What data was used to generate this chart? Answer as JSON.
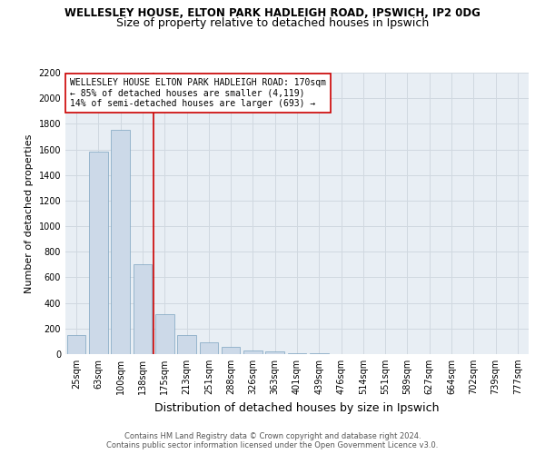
{
  "title1": "WELLESLEY HOUSE, ELTON PARK HADLEIGH ROAD, IPSWICH, IP2 0DG",
  "title2": "Size of property relative to detached houses in Ipswich",
  "xlabel": "Distribution of detached houses by size in Ipswich",
  "ylabel": "Number of detached properties",
  "categories": [
    "25sqm",
    "63sqm",
    "100sqm",
    "138sqm",
    "175sqm",
    "213sqm",
    "251sqm",
    "288sqm",
    "326sqm",
    "363sqm",
    "401sqm",
    "439sqm",
    "476sqm",
    "514sqm",
    "551sqm",
    "589sqm",
    "627sqm",
    "664sqm",
    "702sqm",
    "739sqm",
    "777sqm"
  ],
  "values": [
    150,
    1580,
    1750,
    700,
    310,
    150,
    90,
    60,
    30,
    20,
    10,
    5,
    2,
    0,
    0,
    0,
    0,
    0,
    0,
    0,
    0
  ],
  "bar_color": "#ccd9e8",
  "bar_edge_color": "#7ca3c0",
  "vline_color": "#cc0000",
  "annotation_text": "WELLESLEY HOUSE ELTON PARK HADLEIGH ROAD: 170sqm\n← 85% of detached houses are smaller (4,119)\n14% of semi-detached houses are larger (693) →",
  "annotation_box_edge": "#cc0000",
  "ylim": [
    0,
    2200
  ],
  "yticks": [
    0,
    200,
    400,
    600,
    800,
    1000,
    1200,
    1400,
    1600,
    1800,
    2000,
    2200
  ],
  "footer1": "Contains HM Land Registry data © Crown copyright and database right 2024.",
  "footer2": "Contains public sector information licensed under the Open Government Licence v3.0.",
  "bg_color": "#ffffff",
  "grid_color": "#d0d8e0",
  "title1_fontsize": 8.5,
  "title2_fontsize": 9,
  "xlabel_fontsize": 9,
  "ylabel_fontsize": 8,
  "tick_fontsize": 7,
  "annotation_fontsize": 7,
  "footer_fontsize": 6
}
